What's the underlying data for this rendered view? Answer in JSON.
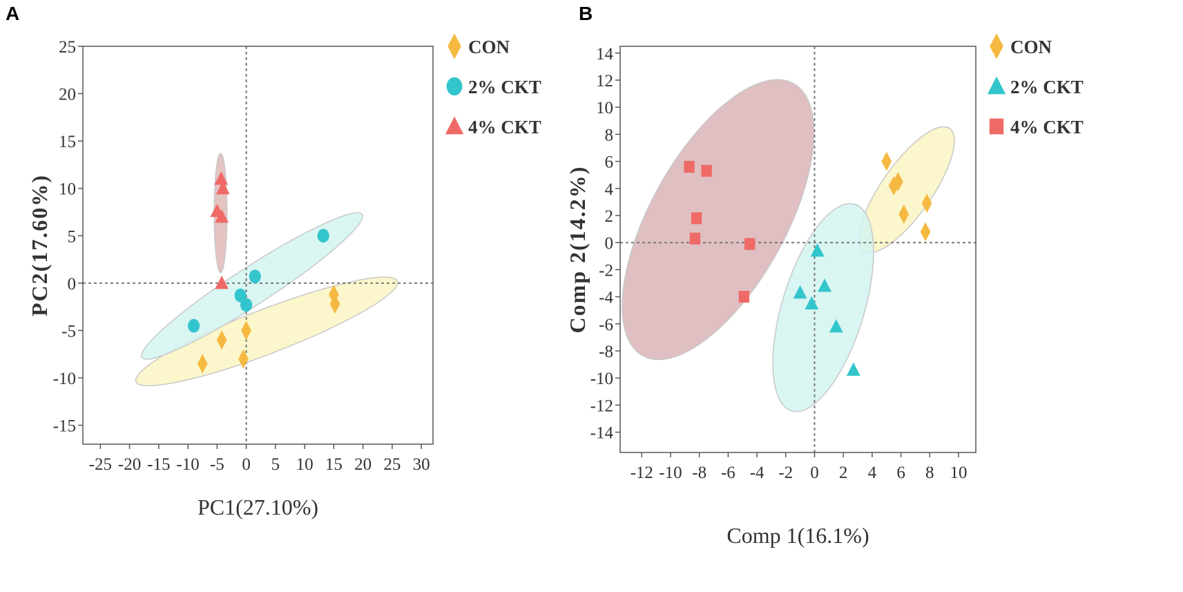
{
  "panels": {
    "a": {
      "letter": "A"
    },
    "b": {
      "letter": "B"
    }
  },
  "chart_data": [
    {
      "type": "scatter",
      "subtype": "PCA score plot with confidence ellipses",
      "xlabel": "PC1(27.10%)",
      "ylabel": "PC2(17.60%)",
      "xlim": [
        -28,
        32
      ],
      "ylim": [
        -17,
        25
      ],
      "xticks": [
        -25,
        -20,
        -15,
        -10,
        -5,
        0,
        5,
        10,
        15,
        20,
        25,
        30
      ],
      "yticks": [
        -15,
        -10,
        -5,
        0,
        5,
        10,
        15,
        20,
        25
      ],
      "reference_lines": {
        "x": 0,
        "y": 0
      },
      "legend": {
        "position": "right-top"
      },
      "series": [
        {
          "name": "CON",
          "marker": "diamond",
          "color": "#F5B942",
          "ellipse_color": "#FAF5C2",
          "points": [
            [
              -7.5,
              -8.5
            ],
            [
              -4.2,
              -6
            ],
            [
              -0.5,
              -8
            ],
            [
              0,
              -5
            ],
            [
              15,
              -1.2
            ],
            [
              15.2,
              -2.2
            ]
          ],
          "ellipse": {
            "cx": 3.5,
            "cy": -5.1,
            "rx": 24,
            "ry": 3.8,
            "angle": 21
          }
        },
        {
          "name": "2% CKT",
          "marker": "circle",
          "color": "#33C5CC",
          "ellipse_color": "#D2F5F1",
          "points": [
            [
              -9,
              -4.5
            ],
            [
              -1,
              -1.3
            ],
            [
              0,
              -2.3
            ],
            [
              1.5,
              0.7
            ],
            [
              13.2,
              5
            ]
          ],
          "ellipse": {
            "cx": 1,
            "cy": -0.3,
            "rx": 22.5,
            "ry": 3.2,
            "angle": 33
          }
        },
        {
          "name": "4% CKT",
          "marker": "triangle",
          "color": "#EF6A66",
          "ellipse_color": "#DFB9B9",
          "points": [
            [
              -5,
              7.6
            ],
            [
              -4.2,
              7
            ],
            [
              -4.3,
              11
            ],
            [
              -4,
              10
            ],
            [
              -4.2,
              0
            ]
          ],
          "ellipse": {
            "cx": -4.4,
            "cy": 7.4,
            "rx": 1.1,
            "ry": 10.2,
            "angle": 0
          }
        }
      ]
    },
    {
      "type": "scatter",
      "subtype": "PLS-DA score plot with confidence ellipses",
      "xlabel": "Comp 1(16.1%)",
      "ylabel": "Comp 2(14.2%)",
      "xlim": [
        -13.5,
        11.2
      ],
      "ylim": [
        -15.5,
        14.5
      ],
      "xticks": [
        -12,
        -10,
        -8,
        -6,
        -4,
        -2,
        0,
        2,
        4,
        6,
        8,
        10
      ],
      "yticks": [
        -14,
        -12,
        -10,
        -8,
        -6,
        -4,
        -2,
        0,
        2,
        4,
        6,
        8,
        10,
        12,
        14
      ],
      "reference_lines": {
        "x": 0,
        "y": 0
      },
      "legend": {
        "position": "right-top"
      },
      "series": [
        {
          "name": "CON",
          "marker": "diamond",
          "color": "#F5B942",
          "ellipse_color": "#FAF5C2",
          "points": [
            [
              5,
              6
            ],
            [
              5.5,
              4.2
            ],
            [
              5.8,
              4.5
            ],
            [
              6.2,
              2.1
            ],
            [
              7.8,
              2.9
            ],
            [
              7.7,
              0.8
            ]
          ],
          "ellipse": {
            "cx": 6.4,
            "cy": 3.9,
            "rx": 5.2,
            "ry": 1.75,
            "angle": 55
          }
        },
        {
          "name": "2% CKT",
          "marker": "triangle",
          "color": "#33C5CC",
          "ellipse_color": "#D2F5F1",
          "points": [
            [
              0.2,
              -0.6
            ],
            [
              -1,
              -3.7
            ],
            [
              0.7,
              -3.2
            ],
            [
              -0.2,
              -4.5
            ],
            [
              1.5,
              -6.2
            ],
            [
              2.7,
              -9.4
            ]
          ],
          "ellipse": {
            "cx": 0.6,
            "cy": -4.8,
            "rx": 7.5,
            "ry": 2.85,
            "angle": 73
          }
        },
        {
          "name": "4% CKT",
          "marker": "square",
          "color": "#EF6A66",
          "ellipse_color": "#D9B4B6",
          "points": [
            [
              -8.7,
              5.6
            ],
            [
              -7.5,
              5.3
            ],
            [
              -8.2,
              1.8
            ],
            [
              -8.3,
              0.3
            ],
            [
              -4.5,
              -0.1
            ],
            [
              -4.9,
              -4
            ]
          ],
          "ellipse": {
            "cx": -6.7,
            "cy": 1.7,
            "rx": 10.8,
            "ry": 4.7,
            "angle": 61
          }
        }
      ]
    }
  ]
}
